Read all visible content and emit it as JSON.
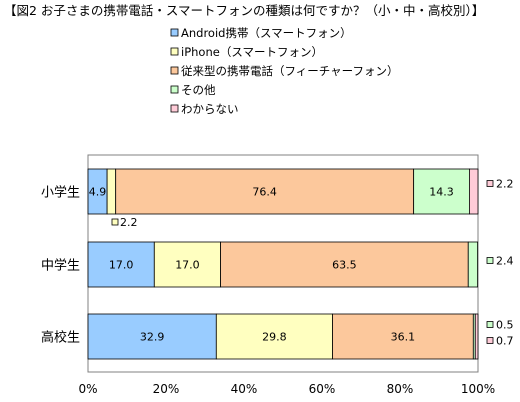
{
  "chart_data": {
    "type": "bar",
    "stacked": "percent",
    "orientation": "horizontal",
    "title": "【図2  お子さまの携帯電話・スマートフォンの種類は何ですか？（小・中・高校別）】",
    "categories": [
      "小学生",
      "中学生",
      "高校生"
    ],
    "series": [
      {
        "name": "Android携帯（スマートフォン）",
        "color": "#99ccff",
        "values": [
          4.9,
          17.0,
          32.9
        ]
      },
      {
        "name": "iPhone（スマートフォン）",
        "color": "#ffffc0",
        "values": [
          2.2,
          17.0,
          29.8
        ]
      },
      {
        "name": "従来型の携帯電話（フィーチャーフォン）",
        "color": "#fcc89c",
        "values": [
          76.4,
          63.5,
          36.1
        ]
      },
      {
        "name": "その他",
        "color": "#ccffcc",
        "values": [
          14.3,
          2.4,
          0.5
        ]
      },
      {
        "name": "わからない",
        "color": "#ffccd8",
        "values": [
          2.2,
          0.0,
          0.7
        ]
      }
    ],
    "data_labels": [
      [
        "4.9",
        "2.2",
        "76.4",
        "14.3",
        "2.2"
      ],
      [
        "17.0",
        "17.0",
        "63.5",
        "2.4",
        ""
      ],
      [
        "32.9",
        "29.8",
        "36.1",
        "0.5",
        "0.7"
      ]
    ],
    "xlim": [
      0,
      100
    ],
    "x_ticks": [
      "0%",
      "20%",
      "40%",
      "60%",
      "80%",
      "100%"
    ],
    "grid": false,
    "legend_position": "top"
  }
}
